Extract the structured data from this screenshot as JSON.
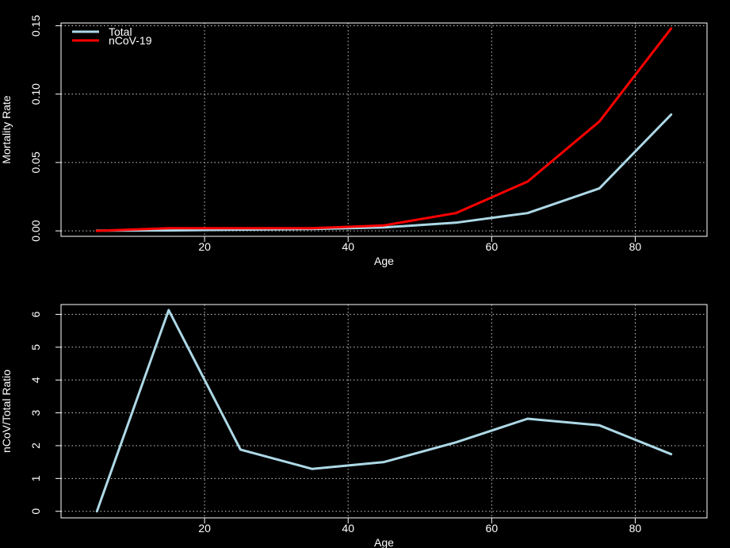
{
  "chart_data": [
    {
      "type": "line",
      "title": "",
      "xlabel": "Age",
      "ylabel": "Mortality Rate",
      "xlim": [
        0,
        90
      ],
      "ylim": [
        -0.004,
        0.152
      ],
      "x_ticks": [
        "20",
        "40",
        "60",
        "80"
      ],
      "y_ticks": [
        "0.00",
        "0.05",
        "0.10",
        "0.15"
      ],
      "grid": true,
      "legend_position": "top-left",
      "x": [
        5,
        15,
        25,
        35,
        45,
        55,
        65,
        75,
        85
      ],
      "series": [
        {
          "name": "Total",
          "color": "#add8e6",
          "values": [
            0.0002,
            0.0003,
            0.0009,
            0.0014,
            0.0025,
            0.006,
            0.013,
            0.031,
            0.085
          ]
        },
        {
          "name": "nCoV-19",
          "color": "#ff0000",
          "values": [
            0.0,
            0.002,
            0.002,
            0.002,
            0.004,
            0.013,
            0.036,
            0.08,
            0.148
          ]
        }
      ]
    },
    {
      "type": "line",
      "title": "",
      "xlabel": "Age",
      "ylabel": "nCoV/Total Ratio",
      "xlim": [
        0,
        90
      ],
      "ylim": [
        -0.2,
        6.3
      ],
      "x_ticks": [
        "20",
        "40",
        "60",
        "80"
      ],
      "y_ticks": [
        "0",
        "1",
        "2",
        "3",
        "4",
        "5",
        "6"
      ],
      "grid": true,
      "x": [
        5,
        15,
        25,
        35,
        45,
        55,
        65,
        75,
        85
      ],
      "series": [
        {
          "color": "#add8e6",
          "values": [
            0,
            6.13,
            1.88,
            1.29,
            1.5,
            2.1,
            2.82,
            2.62,
            1.74
          ]
        }
      ]
    }
  ]
}
